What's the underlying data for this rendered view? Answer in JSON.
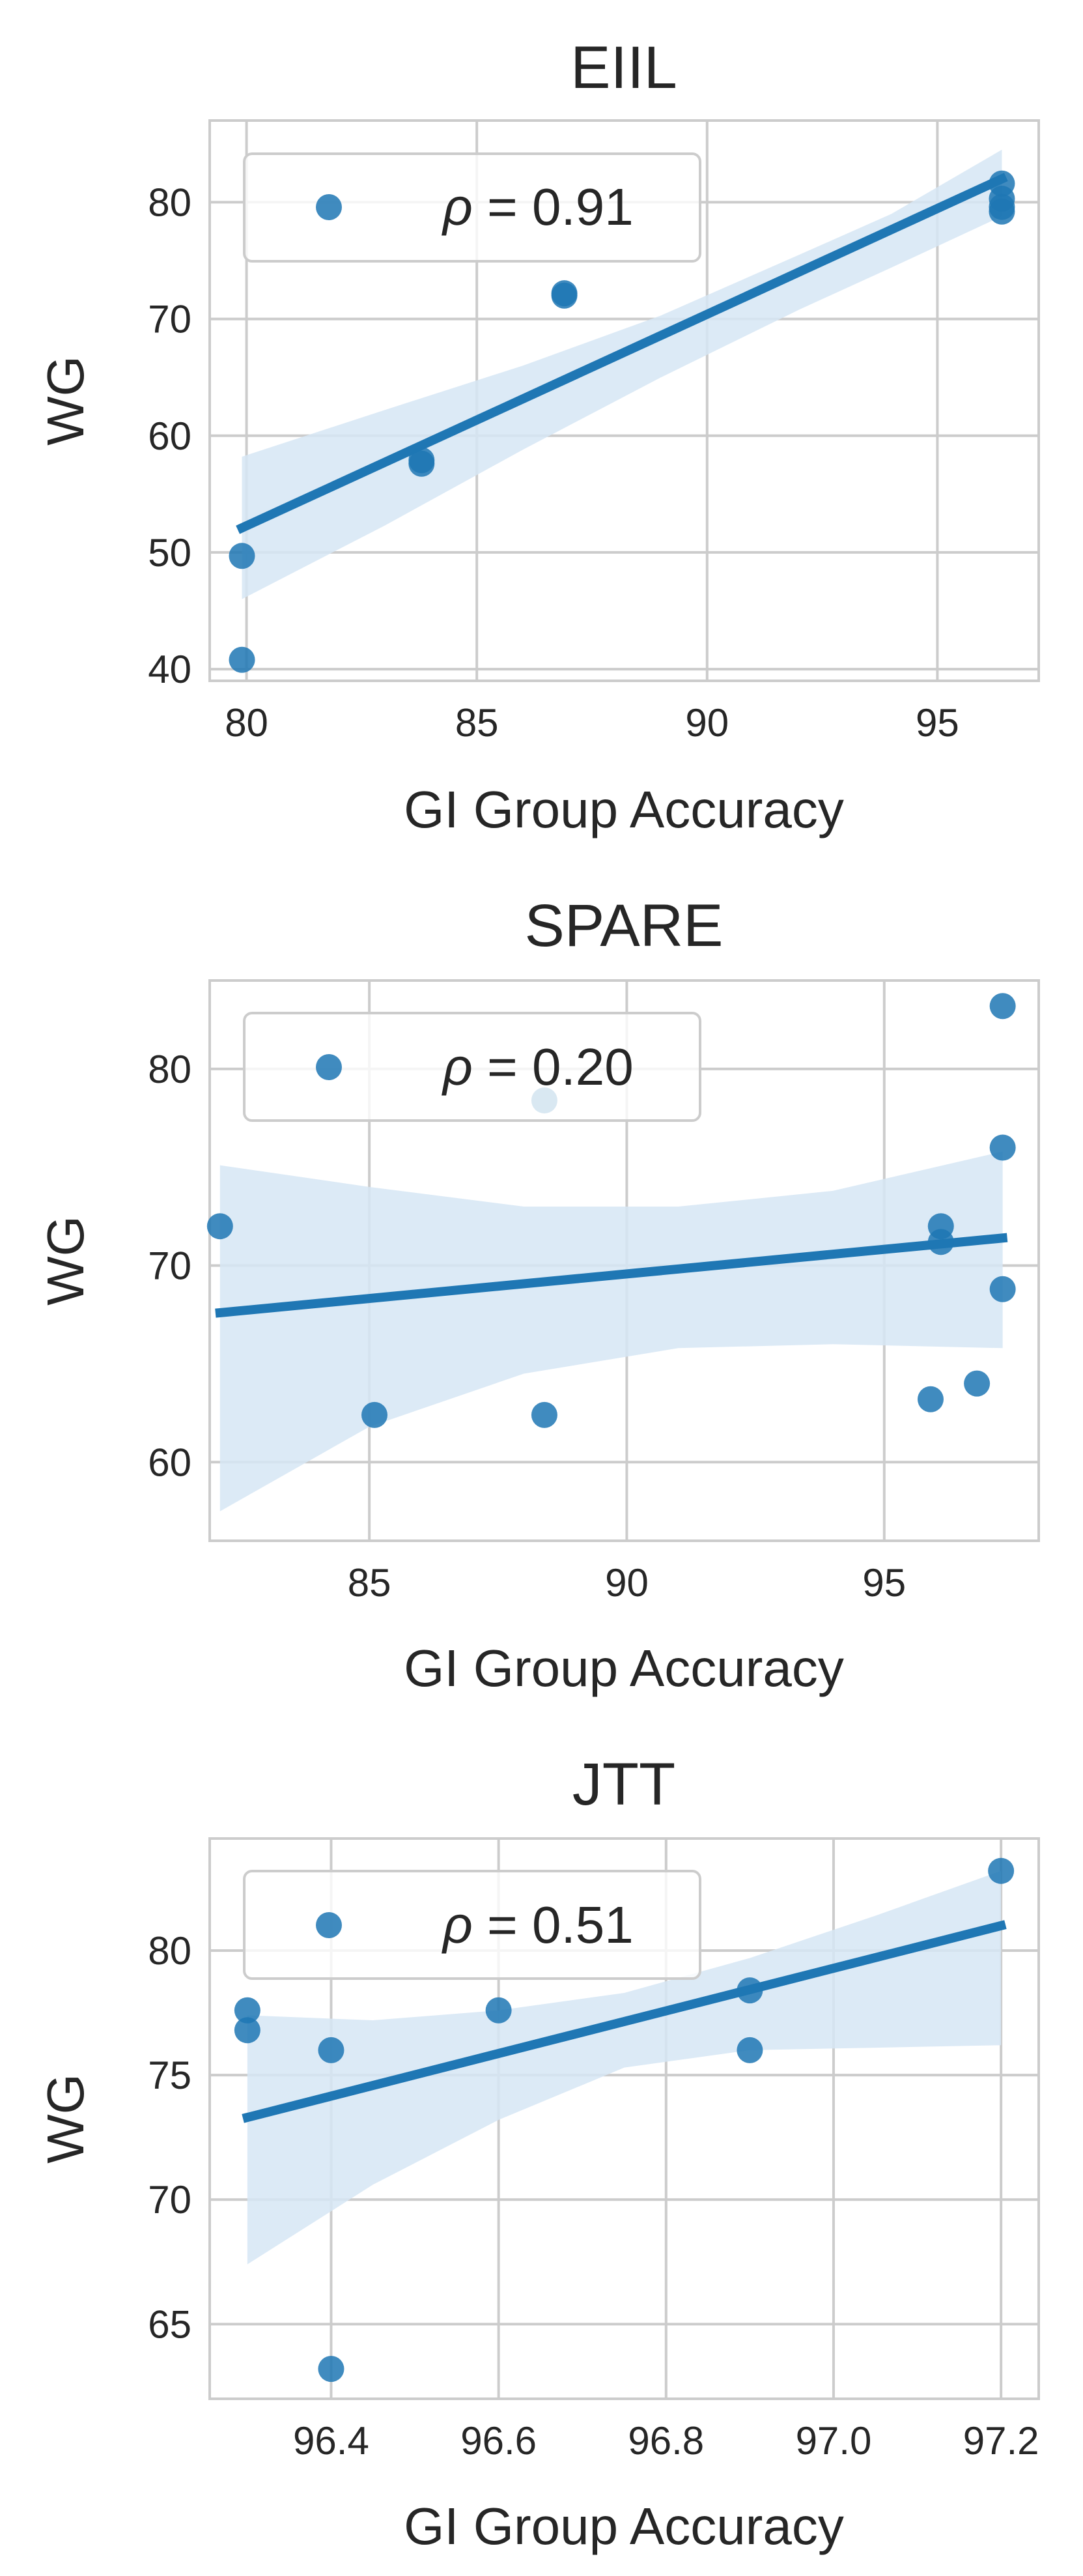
{
  "chart_data": [
    {
      "type": "scatter",
      "title": "EIIL",
      "xlabel": "GI Group Accuracy",
      "ylabel": "WG",
      "xlim": [
        79.2,
        97.2
      ],
      "ylim": [
        39,
        87
      ],
      "xticks": [
        80,
        85,
        90,
        95
      ],
      "yticks": [
        40,
        50,
        60,
        70,
        80
      ],
      "grid": true,
      "legend": {
        "position": "top-left",
        "label": "ρ = 0.91",
        "rho": "ρ",
        "value_text": " = 0.91"
      },
      "points": [
        {
          "x": 79.9,
          "y": 40.8
        },
        {
          "x": 79.9,
          "y": 49.7
        },
        {
          "x": 83.8,
          "y": 57.6
        },
        {
          "x": 83.8,
          "y": 57.9
        },
        {
          "x": 86.9,
          "y": 72.0
        },
        {
          "x": 86.9,
          "y": 72.2
        },
        {
          "x": 96.4,
          "y": 79.2
        },
        {
          "x": 96.4,
          "y": 79.6
        },
        {
          "x": 96.4,
          "y": 80.3
        },
        {
          "x": 96.4,
          "y": 81.6
        }
      ],
      "fit_line": {
        "x": [
          79.9,
          96.4
        ],
        "y": [
          52.1,
          82.0
        ]
      },
      "confidence_band": {
        "x": [
          79.9,
          83.0,
          86.0,
          89.0,
          92.0,
          94.0,
          96.4
        ],
        "lower": [
          46.0,
          52.3,
          58.8,
          65.0,
          70.8,
          74.4,
          78.8
        ],
        "upper": [
          58.2,
          62.2,
          66.0,
          70.3,
          75.5,
          79.0,
          84.5
        ]
      },
      "color": "#1f77b4",
      "band_color": "#d6e6f4"
    },
    {
      "type": "scatter",
      "title": "SPARE",
      "xlabel": "GI Group Accuracy",
      "ylabel": "WG",
      "xlim": [
        81.9,
        98.0
      ],
      "ylim": [
        56,
        84.5
      ],
      "xticks": [
        85,
        90,
        95
      ],
      "yticks": [
        60,
        70,
        80
      ],
      "grid": true,
      "legend": {
        "position": "top-left",
        "label": "ρ = 0.20",
        "rho": "ρ",
        "value_text": " = 0.20"
      },
      "points": [
        {
          "x": 82.1,
          "y": 72.0
        },
        {
          "x": 85.1,
          "y": 62.4
        },
        {
          "x": 88.4,
          "y": 62.4
        },
        {
          "x": 88.4,
          "y": 78.4
        },
        {
          "x": 95.9,
          "y": 63.2
        },
        {
          "x": 96.1,
          "y": 71.2
        },
        {
          "x": 96.1,
          "y": 72.0
        },
        {
          "x": 96.8,
          "y": 64.0
        },
        {
          "x": 97.3,
          "y": 68.8
        },
        {
          "x": 97.3,
          "y": 76.0
        },
        {
          "x": 97.3,
          "y": 83.2
        }
      ],
      "fit_line": {
        "x": [
          82.1,
          97.3
        ],
        "y": [
          67.6,
          71.4
        ]
      },
      "confidence_band": {
        "x": [
          82.1,
          85.0,
          88.0,
          91.0,
          94.0,
          97.3
        ],
        "lower": [
          57.5,
          61.8,
          64.5,
          65.8,
          66.0,
          65.8
        ],
        "upper": [
          75.1,
          74.0,
          73.0,
          73.0,
          73.8,
          75.8
        ]
      },
      "color": "#1f77b4",
      "band_color": "#d6e6f4"
    },
    {
      "type": "scatter",
      "title": "JTT",
      "xlabel": "GI Group Accuracy",
      "ylabel": "WG",
      "xlim": [
        96.255,
        97.245
      ],
      "ylim": [
        62,
        84.5
      ],
      "xticks": [
        96.4,
        96.6,
        96.8,
        97.0,
        97.2
      ],
      "xtick_labels": [
        "96.4",
        "96.6",
        "96.8",
        "97.0",
        "97.2"
      ],
      "yticks": [
        65,
        70,
        75,
        80
      ],
      "grid": true,
      "legend": {
        "position": "top-left",
        "label": "ρ = 0.51",
        "rho": "ρ",
        "value_text": " = 0.51"
      },
      "points": [
        {
          "x": 96.3,
          "y": 76.8
        },
        {
          "x": 96.3,
          "y": 77.6
        },
        {
          "x": 96.4,
          "y": 63.2
        },
        {
          "x": 96.4,
          "y": 76.0
        },
        {
          "x": 96.6,
          "y": 77.6
        },
        {
          "x": 96.9,
          "y": 76.0
        },
        {
          "x": 96.9,
          "y": 78.4
        },
        {
          "x": 97.2,
          "y": 83.2
        }
      ],
      "fit_line": {
        "x": [
          96.3,
          97.2
        ],
        "y": [
          73.3,
          81.0
        ]
      },
      "confidence_band": {
        "x": [
          96.3,
          96.45,
          96.6,
          96.75,
          96.9,
          97.05,
          97.2
        ],
        "lower": [
          67.4,
          70.6,
          73.2,
          75.3,
          76.0,
          76.1,
          76.2
        ],
        "upper": [
          77.4,
          77.2,
          77.6,
          78.3,
          79.7,
          81.4,
          83.2
        ]
      },
      "color": "#1f77b4",
      "band_color": "#d6e6f4"
    }
  ]
}
